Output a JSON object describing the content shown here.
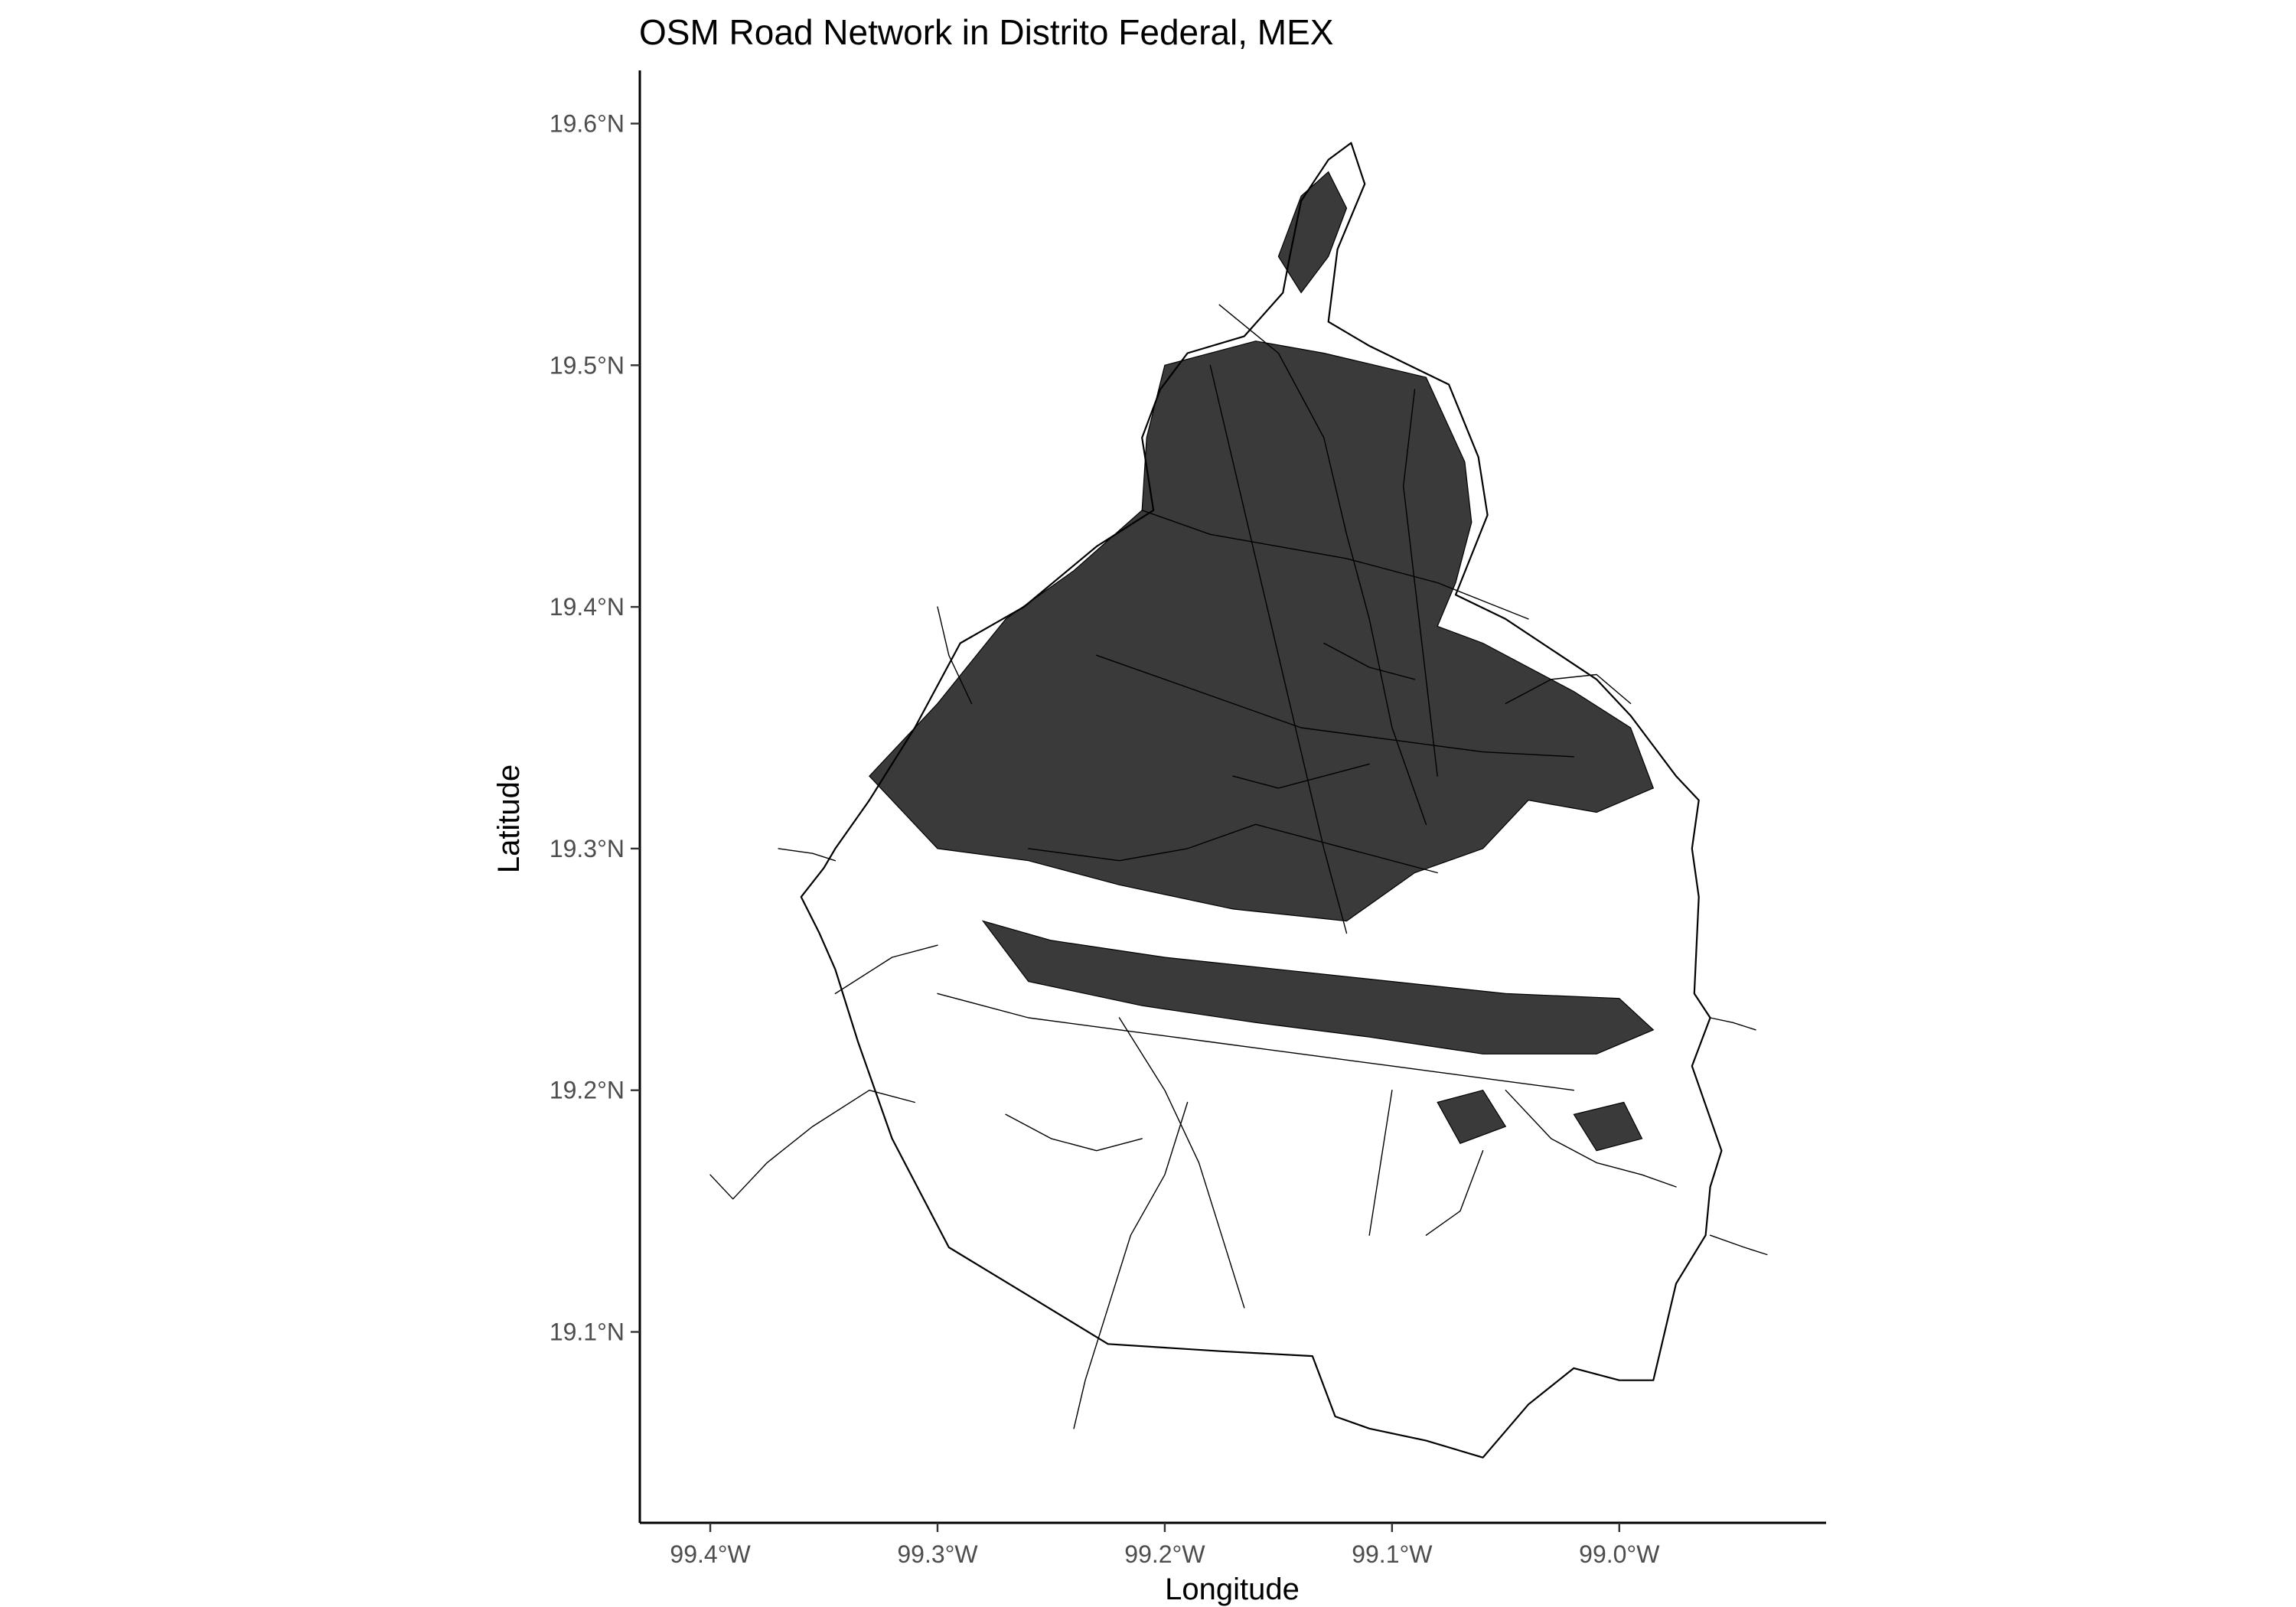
{
  "title": "OSM Road Network in Distrito Federal, MEX",
  "chart_data": {
    "type": "map",
    "title": "OSM Road Network in Distrito Federal, MEX",
    "xlabel": "Longitude",
    "ylabel": "Latitude",
    "grid": false,
    "xlim": [
      -99.431,
      -98.909
    ],
    "ylim": [
      19.021,
      19.622
    ],
    "x_ticks": [
      {
        "value": -99.4,
        "label": "99.4°W"
      },
      {
        "value": -99.3,
        "label": "99.3°W"
      },
      {
        "value": -99.2,
        "label": "99.2°W"
      },
      {
        "value": -99.1,
        "label": "99.1°W"
      },
      {
        "value": -99.0,
        "label": "99.0°W"
      }
    ],
    "y_ticks": [
      {
        "value": 19.1,
        "label": "19.1°N"
      },
      {
        "value": 19.2,
        "label": "19.2°N"
      },
      {
        "value": 19.3,
        "label": "19.3°N"
      },
      {
        "value": 19.4,
        "label": "19.4°N"
      },
      {
        "value": 19.5,
        "label": "19.5°N"
      },
      {
        "value": 19.6,
        "label": "19.6°N"
      }
    ],
    "boundary": [
      [
        -99.118,
        19.592
      ],
      [
        -99.112,
        19.575
      ],
      [
        -99.124,
        19.548
      ],
      [
        -99.128,
        19.518
      ],
      [
        -99.11,
        19.508
      ],
      [
        -99.075,
        19.492
      ],
      [
        -99.062,
        19.462
      ],
      [
        -99.058,
        19.438
      ],
      [
        -99.072,
        19.405
      ],
      [
        -99.05,
        19.395
      ],
      [
        -99.01,
        19.37
      ],
      [
        -98.995,
        19.355
      ],
      [
        -98.975,
        19.33
      ],
      [
        -98.965,
        19.32
      ],
      [
        -98.968,
        19.3
      ],
      [
        -98.965,
        19.28
      ],
      [
        -98.967,
        19.24
      ],
      [
        -98.96,
        19.23
      ],
      [
        -98.968,
        19.21
      ],
      [
        -98.955,
        19.175
      ],
      [
        -98.96,
        19.16
      ],
      [
        -98.962,
        19.14
      ],
      [
        -98.975,
        19.12
      ],
      [
        -98.98,
        19.1
      ],
      [
        -98.985,
        19.08
      ],
      [
        -99.0,
        19.08
      ],
      [
        -99.02,
        19.085
      ],
      [
        -99.04,
        19.07
      ],
      [
        -99.06,
        19.048
      ],
      [
        -99.085,
        19.055
      ],
      [
        -99.11,
        19.06
      ],
      [
        -99.125,
        19.065
      ],
      [
        -99.135,
        19.09
      ],
      [
        -99.175,
        19.092
      ],
      [
        -99.225,
        19.095
      ],
      [
        -99.26,
        19.115
      ],
      [
        -99.295,
        19.135
      ],
      [
        -99.32,
        19.18
      ],
      [
        -99.335,
        19.22
      ],
      [
        -99.345,
        19.25
      ],
      [
        -99.352,
        19.265
      ],
      [
        -99.36,
        19.28
      ],
      [
        -99.35,
        19.292
      ],
      [
        -99.345,
        19.3
      ],
      [
        -99.33,
        19.32
      ],
      [
        -99.31,
        19.35
      ],
      [
        -99.29,
        19.385
      ],
      [
        -99.262,
        19.4
      ],
      [
        -99.23,
        19.425
      ],
      [
        -99.205,
        19.44
      ],
      [
        -99.21,
        19.47
      ],
      [
        -99.202,
        19.49
      ],
      [
        -99.19,
        19.505
      ],
      [
        -99.165,
        19.512
      ],
      [
        -99.148,
        19.53
      ],
      [
        -99.145,
        19.545
      ],
      [
        -99.14,
        19.568
      ],
      [
        -99.128,
        19.585
      ],
      [
        -99.118,
        19.592
      ]
    ],
    "roads": [
      [
        [
          -99.176,
          19.525
        ],
        [
          -99.15,
          19.505
        ],
        [
          -99.13,
          19.47
        ],
        [
          -99.12,
          19.43
        ],
        [
          -99.11,
          19.395
        ],
        [
          -99.1,
          19.35
        ],
        [
          -99.085,
          19.31
        ]
      ],
      [
        [
          -99.21,
          19.44
        ],
        [
          -99.18,
          19.43
        ],
        [
          -99.15,
          19.425
        ],
        [
          -99.12,
          19.42
        ],
        [
          -99.08,
          19.41
        ],
        [
          -99.04,
          19.395
        ]
      ],
      [
        [
          -99.23,
          19.38
        ],
        [
          -99.2,
          19.37
        ],
        [
          -99.17,
          19.36
        ],
        [
          -99.14,
          19.35
        ],
        [
          -99.1,
          19.345
        ],
        [
          -99.06,
          19.34
        ],
        [
          -99.02,
          19.338
        ]
      ],
      [
        [
          -99.26,
          19.3
        ],
        [
          -99.22,
          19.295
        ],
        [
          -99.19,
          19.3
        ],
        [
          -99.16,
          19.31
        ],
        [
          -99.12,
          19.3
        ],
        [
          -99.08,
          19.29
        ]
      ],
      [
        [
          -99.18,
          19.5
        ],
        [
          -99.17,
          19.46
        ],
        [
          -99.16,
          19.42
        ],
        [
          -99.15,
          19.38
        ],
        [
          -99.14,
          19.34
        ],
        [
          -99.13,
          19.3
        ],
        [
          -99.12,
          19.265
        ]
      ],
      [
        [
          -99.09,
          19.49
        ],
        [
          -99.095,
          19.45
        ],
        [
          -99.09,
          19.41
        ],
        [
          -99.085,
          19.37
        ],
        [
          -99.08,
          19.33
        ]
      ],
      [
        [
          -99.3,
          19.24
        ],
        [
          -99.26,
          19.23
        ],
        [
          -99.22,
          19.225
        ],
        [
          -99.18,
          19.22
        ],
        [
          -99.14,
          19.215
        ],
        [
          -99.1,
          19.21
        ],
        [
          -99.06,
          19.205
        ],
        [
          -99.02,
          19.2
        ]
      ],
      [
        [
          -99.22,
          19.23
        ],
        [
          -99.2,
          19.2
        ],
        [
          -99.185,
          19.17
        ],
        [
          -99.175,
          19.14
        ],
        [
          -99.165,
          19.11
        ]
      ],
      [
        [
          -99.19,
          19.195
        ],
        [
          -99.2,
          19.165
        ],
        [
          -99.215,
          19.14
        ],
        [
          -99.225,
          19.11
        ],
        [
          -99.235,
          19.08
        ],
        [
          -99.24,
          19.06
        ]
      ],
      [
        [
          -99.3,
          19.26
        ],
        [
          -99.32,
          19.255
        ],
        [
          -99.345,
          19.24
        ]
      ],
      [
        [
          -99.4,
          19.165
        ],
        [
          -99.39,
          19.155
        ],
        [
          -99.375,
          19.17
        ],
        [
          -99.355,
          19.185
        ],
        [
          -99.33,
          19.2
        ],
        [
          -99.31,
          19.195
        ]
      ],
      [
        [
          -99.27,
          19.19
        ],
        [
          -99.25,
          19.18
        ],
        [
          -99.23,
          19.175
        ],
        [
          -99.21,
          19.18
        ]
      ],
      [
        [
          -99.05,
          19.2
        ],
        [
          -99.03,
          19.18
        ],
        [
          -99.01,
          19.17
        ],
        [
          -98.99,
          19.165
        ],
        [
          -98.975,
          19.16
        ]
      ],
      [
        [
          -98.96,
          19.14
        ],
        [
          -98.945,
          19.135
        ],
        [
          -98.935,
          19.132
        ]
      ],
      [
        [
          -99.1,
          19.2
        ],
        [
          -99.105,
          19.17
        ],
        [
          -99.11,
          19.14
        ]
      ],
      [
        [
          -99.06,
          19.175
        ],
        [
          -99.07,
          19.15
        ],
        [
          -99.085,
          19.14
        ]
      ],
      [
        [
          -99.37,
          19.3
        ],
        [
          -99.355,
          19.298
        ],
        [
          -99.345,
          19.295
        ]
      ],
      [
        [
          -99.3,
          19.4
        ],
        [
          -99.295,
          19.38
        ],
        [
          -99.285,
          19.36
        ]
      ],
      [
        [
          -99.13,
          19.385
        ],
        [
          -99.11,
          19.375
        ],
        [
          -99.09,
          19.37
        ]
      ],
      [
        [
          -99.17,
          19.33
        ],
        [
          -99.15,
          19.325
        ],
        [
          -99.13,
          19.33
        ],
        [
          -99.11,
          19.335
        ]
      ],
      [
        [
          -99.05,
          19.36
        ],
        [
          -99.03,
          19.37
        ],
        [
          -99.01,
          19.372
        ],
        [
          -98.995,
          19.36
        ]
      ],
      [
        [
          -98.96,
          19.23
        ],
        [
          -98.95,
          19.228
        ],
        [
          -98.94,
          19.225
        ]
      ]
    ],
    "dense_areas": [
      [
        [
          -99.2,
          19.5
        ],
        [
          -99.16,
          19.51
        ],
        [
          -99.13,
          19.505
        ],
        [
          -99.085,
          19.495
        ],
        [
          -99.068,
          19.46
        ],
        [
          -99.065,
          19.435
        ],
        [
          -99.072,
          19.41
        ],
        [
          -99.08,
          19.392
        ],
        [
          -99.06,
          19.385
        ],
        [
          -99.02,
          19.365
        ],
        [
          -98.995,
          19.35
        ],
        [
          -98.985,
          19.325
        ],
        [
          -99.01,
          19.315
        ],
        [
          -99.04,
          19.32
        ],
        [
          -99.06,
          19.3
        ],
        [
          -99.09,
          19.29
        ],
        [
          -99.12,
          19.27
        ],
        [
          -99.17,
          19.275
        ],
        [
          -99.22,
          19.285
        ],
        [
          -99.26,
          19.295
        ],
        [
          -99.3,
          19.3
        ],
        [
          -99.33,
          19.33
        ],
        [
          -99.3,
          19.36
        ],
        [
          -99.27,
          19.395
        ],
        [
          -99.24,
          19.415
        ],
        [
          -99.21,
          19.44
        ],
        [
          -99.208,
          19.47
        ]
      ],
      [
        [
          -99.14,
          19.57
        ],
        [
          -99.128,
          19.58
        ],
        [
          -99.12,
          19.565
        ],
        [
          -99.128,
          19.545
        ],
        [
          -99.14,
          19.53
        ],
        [
          -99.15,
          19.545
        ]
      ],
      [
        [
          -99.28,
          19.27
        ],
        [
          -99.25,
          19.262
        ],
        [
          -99.2,
          19.255
        ],
        [
          -99.15,
          19.25
        ],
        [
          -99.1,
          19.245
        ],
        [
          -99.05,
          19.24
        ],
        [
          -99.0,
          19.238
        ],
        [
          -98.985,
          19.225
        ],
        [
          -99.01,
          19.215
        ],
        [
          -99.06,
          19.215
        ],
        [
          -99.11,
          19.222
        ],
        [
          -99.16,
          19.228
        ],
        [
          -99.21,
          19.235
        ],
        [
          -99.26,
          19.245
        ]
      ],
      [
        [
          -99.08,
          19.195
        ],
        [
          -99.06,
          19.2
        ],
        [
          -99.05,
          19.185
        ],
        [
          -99.07,
          19.178
        ]
      ],
      [
        [
          -99.02,
          19.19
        ],
        [
          -98.998,
          19.195
        ],
        [
          -98.99,
          19.18
        ],
        [
          -99.01,
          19.175
        ]
      ]
    ]
  }
}
